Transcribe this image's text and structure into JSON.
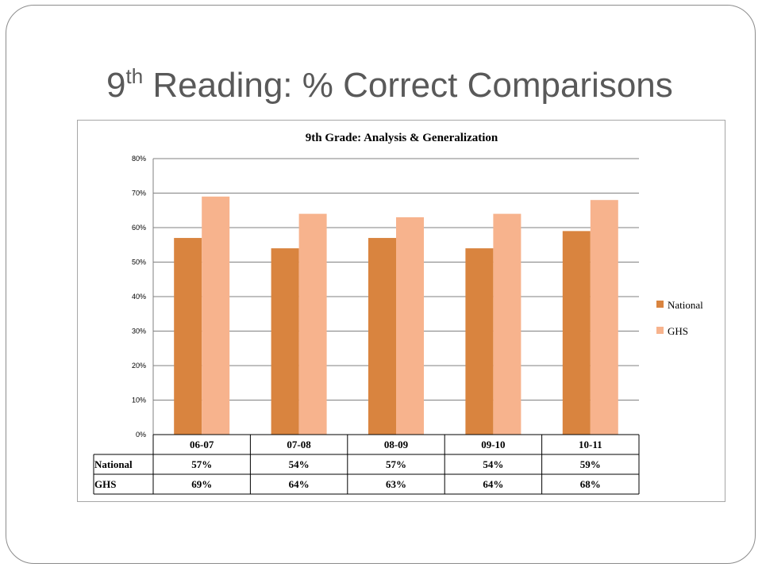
{
  "slide": {
    "title_main": "9",
    "title_sup": "th",
    "title_rest": " Reading:  % Correct Comparisons"
  },
  "colors": {
    "national": "#d9843f",
    "ghs": "#f7b38d",
    "grid": "#808080",
    "frame": "#8c8c8c",
    "title": "#595959"
  },
  "chart_data": {
    "type": "bar",
    "title": "9th Grade: Analysis & Generalization",
    "categories": [
      "06-07",
      "07-08",
      "08-09",
      "09-10",
      "10-11"
    ],
    "series": [
      {
        "name": "National",
        "values": [
          57,
          54,
          57,
          54,
          59
        ],
        "labels": [
          "57%",
          "54%",
          "57%",
          "54%",
          "59%"
        ],
        "color": "#d9843f"
      },
      {
        "name": "GHS",
        "values": [
          69,
          64,
          63,
          64,
          68
        ],
        "labels": [
          "69%",
          "64%",
          "63%",
          "64%",
          "68%"
        ],
        "color": "#f7b38d"
      }
    ],
    "ylim": [
      0,
      80
    ],
    "yticks": [
      0,
      10,
      20,
      30,
      40,
      50,
      60,
      70,
      80
    ],
    "ytick_labels": [
      "0%",
      "10%",
      "20%",
      "30%",
      "40%",
      "50%",
      "60%",
      "70%",
      "80%"
    ],
    "grid": true,
    "legend": "right",
    "data_table": true
  }
}
